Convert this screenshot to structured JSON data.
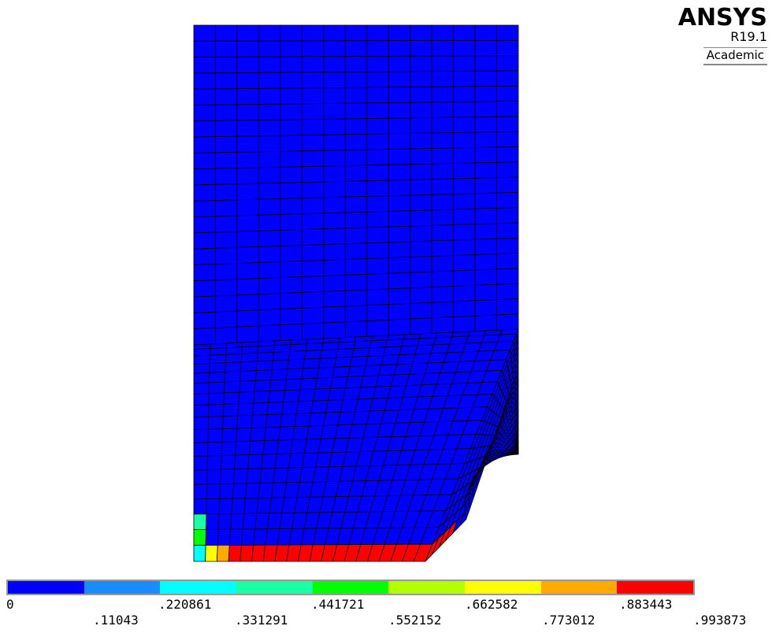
{
  "branding": {
    "name": "ANSYS",
    "version": "R19.1",
    "edition": "Academic"
  },
  "legend": {
    "labels_top": [
      "0",
      ".220861",
      ".441721",
      ".662582",
      ".883443"
    ],
    "labels_bottom": [
      ".11043",
      ".331291",
      ".552152",
      ".773012",
      ".993873"
    ],
    "colors": [
      "#0000ff",
      "#1a8cff",
      "#00ffff",
      "#1affa3",
      "#00ff00",
      "#b3ff00",
      "#ffff00",
      "#ffaa00",
      "#ff0000"
    ]
  },
  "contour": {
    "min": 0,
    "max": 0.993873,
    "high_band_color": "#ff0000",
    "base_color": "#0000ff"
  }
}
